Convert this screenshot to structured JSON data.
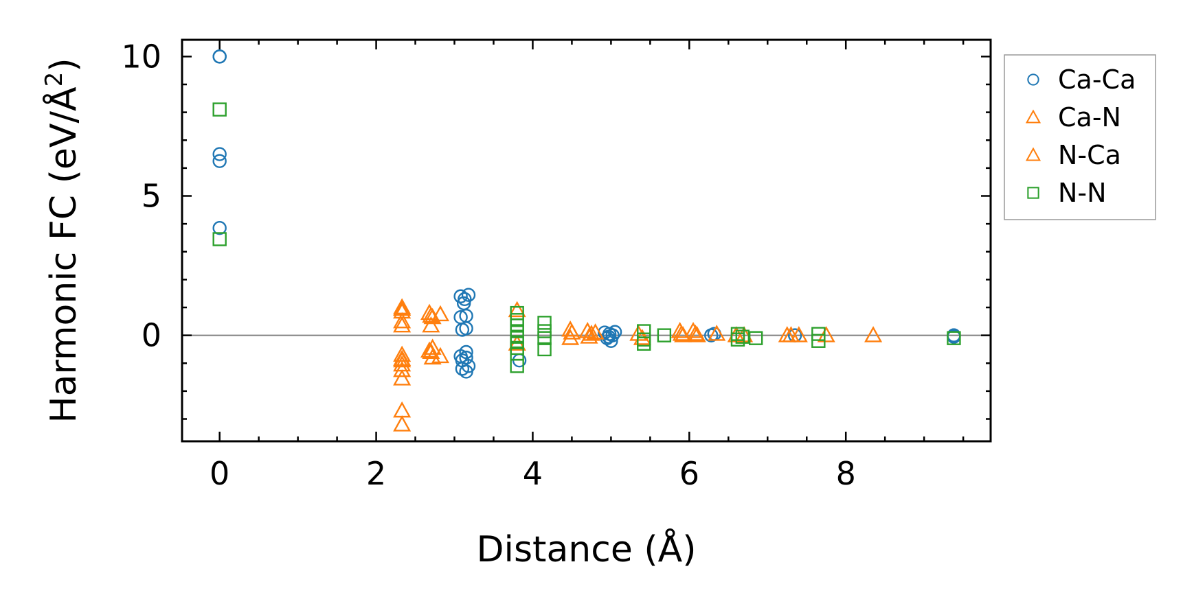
{
  "chart_data": {
    "type": "scatter",
    "xlabel": "Distance (Å)",
    "ylabel_prefix": "Harmonic FC (eV/Å",
    "ylabel_sup": "2",
    "ylabel_suffix": ")",
    "xlim": [
      -0.48,
      9.85
    ],
    "ylim": [
      -3.8,
      10.6
    ],
    "xticks": [
      0,
      2,
      4,
      6,
      8
    ],
    "xtick_labels": [
      "0",
      "2",
      "4",
      "6",
      "8"
    ],
    "yticks": [
      0,
      5,
      10
    ],
    "ytick_labels": [
      "0",
      "5",
      "10"
    ],
    "grid": false,
    "zero_line": true,
    "legend_position": "outside right, top",
    "series": [
      {
        "name": "Ca-Ca",
        "marker": "circle",
        "color": "#1f77b4",
        "points": [
          [
            0,
            10.0
          ],
          [
            0,
            10.0
          ],
          [
            0,
            6.5
          ],
          [
            0,
            6.25
          ],
          [
            0,
            3.85
          ],
          [
            3.08,
            1.4
          ],
          [
            3.13,
            1.3
          ],
          [
            3.18,
            1.45
          ],
          [
            3.12,
            1.15
          ],
          [
            3.08,
            0.65
          ],
          [
            3.15,
            0.7
          ],
          [
            3.1,
            0.2
          ],
          [
            3.15,
            0.25
          ],
          [
            3.08,
            -0.75
          ],
          [
            3.15,
            -0.8
          ],
          [
            3.1,
            -0.9
          ],
          [
            3.15,
            -0.6
          ],
          [
            3.1,
            -1.2
          ],
          [
            3.15,
            -1.3
          ],
          [
            3.18,
            -1.1
          ],
          [
            3.83,
            -0.9
          ],
          [
            4.92,
            0.1
          ],
          [
            4.95,
            -0.1
          ],
          [
            4.98,
            0.05
          ],
          [
            5.0,
            -0.2
          ],
          [
            5.02,
            0.0
          ],
          [
            5.05,
            0.12
          ],
          [
            4.97,
            -0.05
          ],
          [
            6.28,
            0.0
          ],
          [
            6.32,
            0.05
          ],
          [
            7.35,
            0.0
          ],
          [
            9.38,
            0.0
          ],
          [
            9.38,
            -0.05
          ]
        ]
      },
      {
        "name": "Ca-N",
        "marker": "triangle",
        "color": "#ff7f0e",
        "points": [
          [
            2.33,
            1.0
          ],
          [
            2.33,
            0.85
          ],
          [
            2.33,
            0.5
          ],
          [
            2.33,
            0.35
          ],
          [
            2.33,
            -0.7
          ],
          [
            2.33,
            -0.85
          ],
          [
            2.33,
            -1.05
          ],
          [
            2.33,
            -1.25
          ],
          [
            2.33,
            -1.55
          ],
          [
            2.33,
            -2.7
          ],
          [
            2.33,
            -3.2
          ],
          [
            2.68,
            0.8
          ],
          [
            2.72,
            0.65
          ],
          [
            2.7,
            0.35
          ],
          [
            2.72,
            -0.45
          ],
          [
            2.68,
            -0.55
          ],
          [
            2.72,
            -0.8
          ],
          [
            2.82,
            0.75
          ],
          [
            2.82,
            -0.75
          ],
          [
            3.8,
            0.9
          ],
          [
            3.8,
            -0.3
          ],
          [
            4.48,
            0.2
          ],
          [
            4.48,
            -0.1
          ],
          [
            4.7,
            0.15
          ],
          [
            4.72,
            -0.05
          ],
          [
            4.8,
            0.1
          ],
          [
            5.35,
            0.05
          ],
          [
            5.4,
            -0.1
          ],
          [
            5.88,
            0.15
          ],
          [
            5.92,
            0.0
          ],
          [
            6.05,
            0.15
          ],
          [
            6.1,
            0.0
          ],
          [
            6.35,
            0.05
          ],
          [
            6.6,
            0.0
          ],
          [
            6.7,
            0.0
          ],
          [
            7.25,
            0.0
          ],
          [
            7.4,
            0.0
          ],
          [
            7.75,
            0.0
          ],
          [
            8.35,
            0.0
          ]
        ]
      },
      {
        "name": "N-Ca",
        "marker": "triangle",
        "color": "#ff7f0e",
        "points": [
          [
            2.33,
            0.95
          ],
          [
            2.33,
            -0.9
          ],
          [
            2.7,
            0.7
          ],
          [
            2.7,
            -0.6
          ],
          [
            4.5,
            0.1
          ],
          [
            4.75,
            0.05
          ],
          [
            5.9,
            0.05
          ],
          [
            6.08,
            0.05
          ],
          [
            7.3,
            0.0
          ]
        ]
      },
      {
        "name": "N-N",
        "marker": "square",
        "color": "#2ca02c",
        "points": [
          [
            0,
            8.1
          ],
          [
            0,
            3.45
          ],
          [
            3.8,
            0.8
          ],
          [
            3.8,
            0.55
          ],
          [
            3.8,
            0.35
          ],
          [
            3.8,
            0.15
          ],
          [
            3.8,
            -0.05
          ],
          [
            3.8,
            -0.25
          ],
          [
            3.8,
            -0.45
          ],
          [
            3.8,
            -0.65
          ],
          [
            3.8,
            -1.1
          ],
          [
            4.15,
            0.45
          ],
          [
            4.15,
            0.15
          ],
          [
            4.15,
            -0.1
          ],
          [
            4.15,
            -0.5
          ],
          [
            5.42,
            0.15
          ],
          [
            5.42,
            -0.15
          ],
          [
            5.42,
            -0.3
          ],
          [
            5.68,
            0.0
          ],
          [
            6.62,
            0.05
          ],
          [
            6.62,
            -0.15
          ],
          [
            6.68,
            -0.05
          ],
          [
            6.85,
            -0.1
          ],
          [
            7.65,
            0.05
          ],
          [
            7.65,
            -0.2
          ],
          [
            9.38,
            -0.1
          ]
        ]
      }
    ]
  }
}
